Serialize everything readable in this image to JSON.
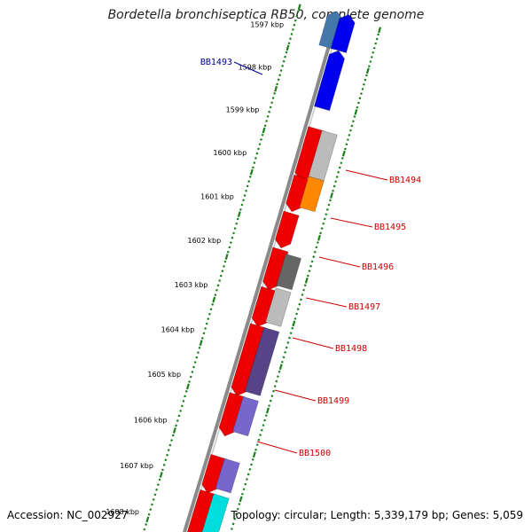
{
  "title": "Bordetella bronchiseptica RB50, complete genome",
  "footer": {
    "accession": "Accession: NC_002927",
    "topology": "Topology: circular; Length: 5,339,179 bp; Genes: 5,059"
  },
  "colors": {
    "backbone": "#8a8a8a",
    "dots": "#1a7f1a",
    "label_red": "#cc0000",
    "label_blue": "#000099"
  },
  "kbp_ticks": [
    {
      "label": "1597 kbp"
    },
    {
      "label": "1598 kbp"
    },
    {
      "label": "1599 kbp"
    },
    {
      "label": "1600 kbp"
    },
    {
      "label": "1601 kbp"
    },
    {
      "label": "1602 kbp"
    },
    {
      "label": "1603 kbp"
    },
    {
      "label": "1604 kbp"
    },
    {
      "label": "1605 kbp"
    },
    {
      "label": "1606 kbp"
    },
    {
      "label": "1607 kbp"
    },
    {
      "label": "1608 kbp"
    }
  ],
  "gene_labels": [
    {
      "name": "BB1493",
      "color": "#000099"
    },
    {
      "name": "BB1494",
      "color": "#cc0000"
    },
    {
      "name": "BB1495",
      "color": "#cc0000"
    },
    {
      "name": "BB1496",
      "color": "#cc0000"
    },
    {
      "name": "BB1497",
      "color": "#cc0000"
    },
    {
      "name": "BB1498",
      "color": "#cc0000"
    },
    {
      "name": "BB1499",
      "color": "#cc0000"
    },
    {
      "name": "BB1500",
      "color": "#cc0000"
    }
  ],
  "features": [
    {
      "track": 2,
      "s": 0.0,
      "e": 0.06,
      "color": "#4477aa",
      "dir": "rev"
    },
    {
      "track": 1,
      "s": 0.0,
      "e": 0.06,
      "color": "#0000ee",
      "dir": "rev"
    },
    {
      "track": 1,
      "s": 0.072,
      "e": 0.175,
      "color": "#0000ee",
      "dir": "rev"
    },
    {
      "track": 1,
      "s": 0.215,
      "e": 0.305,
      "color": "#ee0000",
      "dir": "fwd"
    },
    {
      "track": 0,
      "s": 0.215,
      "e": 0.305,
      "color": "#bbbbbb",
      "dir": "none"
    },
    {
      "track": 1,
      "s": 0.31,
      "e": 0.365,
      "color": "#ee0000",
      "dir": "fwd"
    },
    {
      "track": 0,
      "s": 0.305,
      "e": 0.365,
      "color": "#ff8800",
      "dir": "none"
    },
    {
      "track": 1,
      "s": 0.38,
      "e": 0.435,
      "color": "#ee0000",
      "dir": "fwd"
    },
    {
      "track": 1,
      "s": 0.45,
      "e": 0.515,
      "color": "#ee0000",
      "dir": "fwd"
    },
    {
      "track": 0,
      "s": 0.455,
      "e": 0.515,
      "color": "#666666",
      "dir": "none"
    },
    {
      "track": 1,
      "s": 0.525,
      "e": 0.585,
      "color": "#ee0000",
      "dir": "fwd"
    },
    {
      "track": 0,
      "s": 0.52,
      "e": 0.585,
      "color": "#bbbbbb",
      "dir": "none"
    },
    {
      "track": 1,
      "s": 0.595,
      "e": 0.715,
      "color": "#ee0000",
      "dir": "fwd"
    },
    {
      "track": 0,
      "s": 0.595,
      "e": 0.715,
      "color": "#554488",
      "dir": "none"
    },
    {
      "track": 1,
      "s": 0.725,
      "e": 0.79,
      "color": "#ee0000",
      "dir": "fwd"
    },
    {
      "track": 0,
      "s": 0.725,
      "e": 0.79,
      "color": "#7766cc",
      "dir": "none"
    },
    {
      "track": 1,
      "s": 0.84,
      "e": 0.895,
      "color": "#ee0000",
      "dir": "fwd"
    },
    {
      "track": 0,
      "s": 0.84,
      "e": 0.895,
      "color": "#7766cc",
      "dir": "none"
    },
    {
      "track": 1,
      "s": 0.905,
      "e": 1.0,
      "color": "#ee0000",
      "dir": "fwd"
    },
    {
      "track": 0,
      "s": 0.905,
      "e": 1.0,
      "color": "#00dddd",
      "dir": "none"
    }
  ]
}
